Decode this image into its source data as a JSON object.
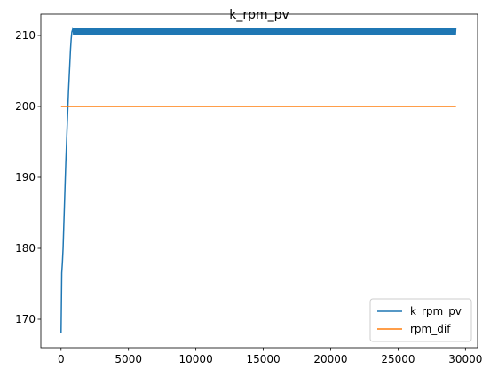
{
  "chart_data": {
    "type": "line",
    "title": "k_rpm_pv",
    "xlabel": "",
    "ylabel": "",
    "xlim": [
      -1500,
      30900
    ],
    "ylim": [
      166,
      213
    ],
    "xticks": [
      0,
      5000,
      10000,
      15000,
      20000,
      25000,
      30000
    ],
    "xtick_labels": [
      "0",
      "5000",
      "10000",
      "15000",
      "20000",
      "25000",
      "30000"
    ],
    "yticks": [
      170,
      180,
      190,
      200,
      210
    ],
    "ytick_labels": [
      "170",
      "180",
      "190",
      "200",
      "210"
    ],
    "grid": false,
    "legend_position": "lower-right",
    "series": [
      {
        "name": "k_rpm_pv",
        "color": "#1f77b4",
        "x": [
          0,
          50,
          100,
          150,
          200,
          250,
          300,
          350,
          400,
          450,
          500,
          550,
          600,
          650,
          700,
          750,
          800,
          850,
          900,
          1000,
          2000,
          5000,
          10000,
          15000,
          20000,
          25000,
          29300
        ],
        "y": [
          168,
          176.5,
          178,
          180,
          183,
          186,
          189,
          192,
          194.5,
          197,
          199.5,
          202,
          204,
          206,
          208,
          209.5,
          210.5,
          210.8,
          210.5,
          210.5,
          210.5,
          210.5,
          210.5,
          210.5,
          210.5,
          210.5,
          210.5
        ],
        "noise_band": [
          210.0,
          211.0
        ],
        "noise_start_x": 900
      },
      {
        "name": "rpm_dif",
        "color": "#ff7f0e",
        "x": [
          0,
          29300
        ],
        "y": [
          200,
          200
        ]
      }
    ]
  }
}
